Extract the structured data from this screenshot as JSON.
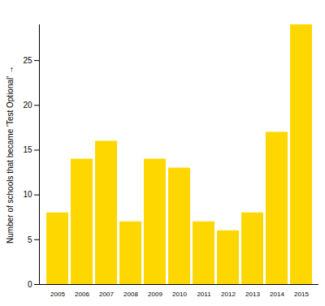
{
  "chart_data": {
    "type": "bar",
    "y_label": "Number of schools that became 'Test Optional'",
    "categories": [
      "2005",
      "2006",
      "2007",
      "2008",
      "2009",
      "2010",
      "2011",
      "2012",
      "2013",
      "2014",
      "2015"
    ],
    "values": [
      8,
      14,
      16,
      7,
      14,
      13,
      7,
      6,
      8,
      17,
      29
    ],
    "color": "#ffd700",
    "ylim": [
      0,
      29
    ],
    "yticks": [
      0,
      5,
      10,
      15,
      20,
      25
    ],
    "grid": false
  }
}
